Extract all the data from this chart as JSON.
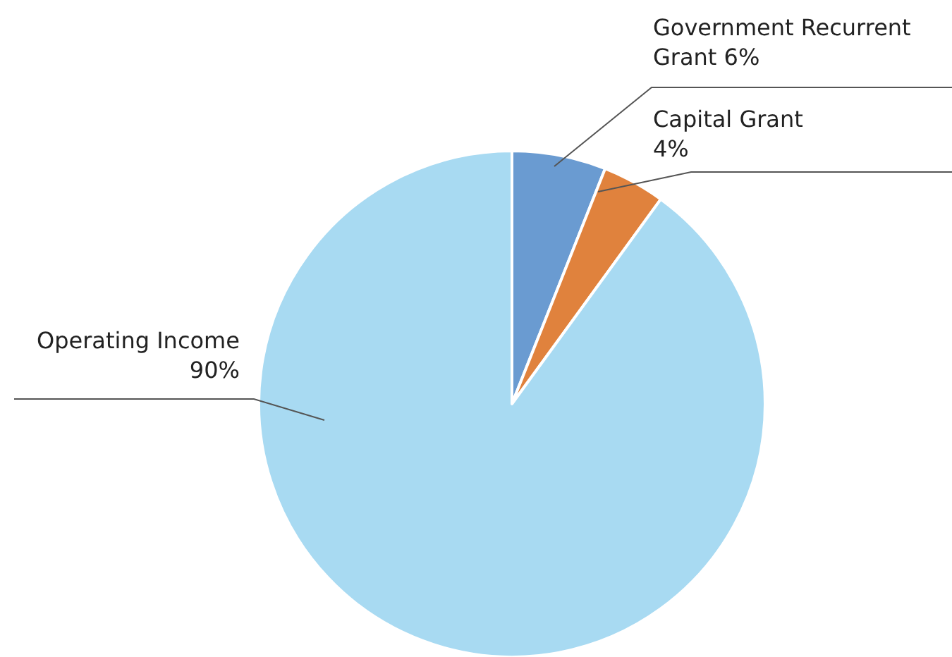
{
  "chart_data": {
    "type": "pie",
    "categories": [
      "Government Recurrent Grant",
      "Capital Grant",
      "Operating Income"
    ],
    "values": [
      6,
      4,
      90
    ],
    "colors": [
      "#6a9bd1",
      "#e0823d",
      "#a8daf2"
    ],
    "value_labels": [
      "6%",
      "4%",
      "90%"
    ],
    "legend": false
  }
}
